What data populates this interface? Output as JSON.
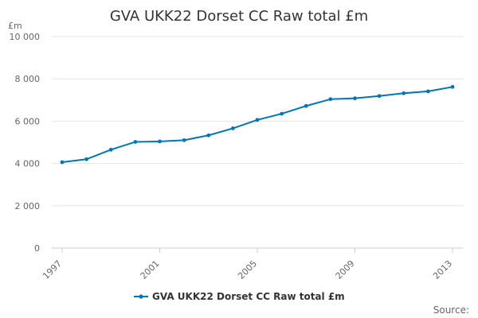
{
  "chart_data": {
    "type": "line",
    "title": "GVA UKK22 Dorset CC Raw total £m",
    "ylabel": "£m",
    "xlabel": "",
    "x": [
      1997,
      1998,
      1999,
      2000,
      2001,
      2002,
      2003,
      2004,
      2005,
      2006,
      2007,
      2008,
      2009,
      2010,
      2011,
      2012,
      2013
    ],
    "x_tick_labels": [
      "1997",
      "2001",
      "2005",
      "2009",
      "2013"
    ],
    "x_tick_values": [
      1997,
      2001,
      2005,
      2009,
      2013
    ],
    "y_tick_labels": [
      "0",
      "2 000",
      "4 000",
      "6 000",
      "8 000",
      "10 000"
    ],
    "y_tick_values": [
      0,
      2000,
      4000,
      6000,
      8000,
      10000
    ],
    "ylim": [
      0,
      10000
    ],
    "xlim": [
      1997,
      2013
    ],
    "grid": true,
    "legend_position": "bottom",
    "series": [
      {
        "name": "GVA UKK22 Dorset CC Raw total £m",
        "color": "#0076b6",
        "values": [
          4060,
          4200,
          4650,
          5020,
          5040,
          5100,
          5330,
          5660,
          6060,
          6350,
          6720,
          7040,
          7080,
          7190,
          7320,
          7410,
          7620
        ]
      }
    ],
    "source_label": "Source:"
  }
}
